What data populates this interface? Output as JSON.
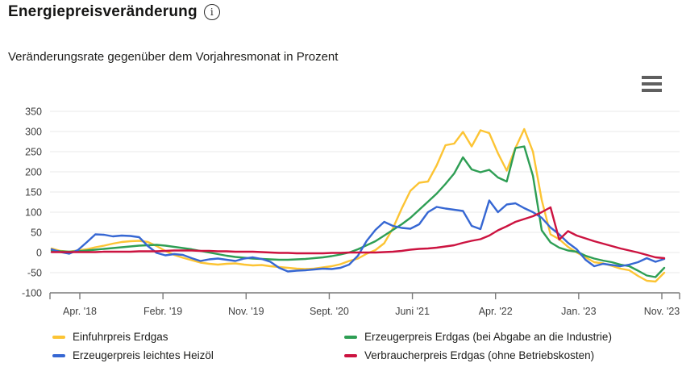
{
  "header": {
    "title": "Energiepreisveränderung",
    "info_icon": "i"
  },
  "subtitle": "Veränderungsrate gegenüber dem Vorjahresmonat in Prozent",
  "icons": {
    "info": "info-circle-icon",
    "menu": "hamburger-menu-icon"
  },
  "colors": {
    "grid": "#e9e9e9",
    "axis": "#7a7a7a",
    "tick_text": "#3f3f3f",
    "title_text": "#161615"
  },
  "chart_data": {
    "type": "line",
    "title": "Energiepreisveränderung",
    "subtitle": "Veränderungsrate gegenüber dem Vorjahresmonat in Prozent",
    "ylabel": "Prozent",
    "ylim": [
      -100,
      350
    ],
    "grid": true,
    "legend_position": "bottom",
    "y_ticks": [
      350,
      300,
      250,
      200,
      150,
      100,
      50,
      0,
      -50,
      -100
    ],
    "x_tick_labels": [
      "Apr. '18",
      "Febr. '19",
      "Nov. '19",
      "Sept. '20",
      "Juni '21",
      "Apr. '22",
      "Jan. '23",
      "Nov. '23"
    ],
    "x_period": "monthly, Jan 2018 - Nov 2023",
    "series": [
      {
        "name": "Einfuhrpreis Erdgas",
        "color": "#fcc434",
        "values": [
          10,
          4,
          2,
          5,
          8,
          13,
          17,
          22,
          26,
          28,
          29,
          26,
          16,
          4,
          -6,
          -13,
          -19,
          -25,
          -28,
          -30,
          -28,
          -27,
          -30,
          -32,
          -31,
          -34,
          -36,
          -38,
          -40,
          -41,
          -40,
          -37,
          -34,
          -29,
          -21,
          -15,
          -3,
          6,
          23,
          60,
          109,
          153,
          173,
          176,
          216,
          266,
          270,
          299,
          263,
          303,
          296,
          246,
          203,
          259,
          306,
          250,
          130,
          45,
          33,
          14,
          0,
          -12,
          -24,
          -27,
          -33,
          -40,
          -44,
          -58,
          -70,
          -72,
          -50
        ]
      },
      {
        "name": "Erzeugerpreis Erdgas (bei Abgabe an die Industrie)",
        "color": "#2e9e54",
        "values": [
          5,
          3,
          2,
          3,
          5,
          7,
          9,
          11,
          13,
          15,
          17,
          18,
          19,
          17,
          14,
          11,
          8,
          4,
          0,
          -4,
          -8,
          -11,
          -13,
          -15,
          -16,
          -17,
          -18,
          -18,
          -17,
          -16,
          -14,
          -12,
          -9,
          -5,
          0,
          8,
          18,
          28,
          42,
          56,
          70,
          86,
          106,
          126,
          146,
          170,
          196,
          236,
          206,
          199,
          205,
          186,
          176,
          259,
          263,
          190,
          55,
          25,
          12,
          5,
          2,
          -8,
          -15,
          -20,
          -24,
          -30,
          -34,
          -45,
          -57,
          -61,
          -38
        ]
      },
      {
        "name": "Erzeugerpreis leichtes Heizöl",
        "color": "#3667d3",
        "values": [
          8,
          1,
          -3,
          6,
          25,
          45,
          44,
          40,
          42,
          41,
          38,
          16,
          -1,
          -7,
          -4,
          -6,
          -14,
          -21,
          -17,
          -15,
          -18,
          -21,
          -15,
          -12,
          -16,
          -23,
          -38,
          -47,
          -45,
          -44,
          -42,
          -40,
          -41,
          -38,
          -30,
          -8,
          29,
          56,
          76,
          66,
          61,
          59,
          70,
          100,
          113,
          109,
          106,
          103,
          66,
          58,
          129,
          100,
          119,
          122,
          110,
          100,
          86,
          62,
          45,
          24,
          8,
          -18,
          -34,
          -28,
          -31,
          -34,
          -30,
          -24,
          -14,
          -23,
          -16
        ]
      },
      {
        "name": "Verbraucherpreis Erdgas (ohne Betriebskosten)",
        "color": "#cc1340",
        "values": [
          1,
          1,
          1,
          1,
          1,
          1,
          2,
          2,
          2,
          2,
          3,
          3,
          3,
          4,
          5,
          5,
          5,
          4,
          4,
          3,
          3,
          2,
          2,
          2,
          1,
          0,
          -1,
          -1,
          -2,
          -2,
          -2,
          -2,
          -1,
          -1,
          0,
          0,
          0,
          0,
          1,
          2,
          4,
          7,
          9,
          10,
          12,
          15,
          18,
          24,
          29,
          33,
          42,
          55,
          65,
          76,
          83,
          90,
          100,
          112,
          32,
          53,
          42,
          35,
          28,
          22,
          16,
          10,
          5,
          0,
          -6,
          -12,
          -14
        ]
      }
    ],
    "legend": [
      "Einfuhrpreis Erdgas",
      "Erzeugerpreis Erdgas (bei Abgabe an die Industrie)",
      "Erzeugerpreis leichtes Heizöl",
      "Verbraucherpreis Erdgas (ohne Betriebskosten)"
    ]
  }
}
